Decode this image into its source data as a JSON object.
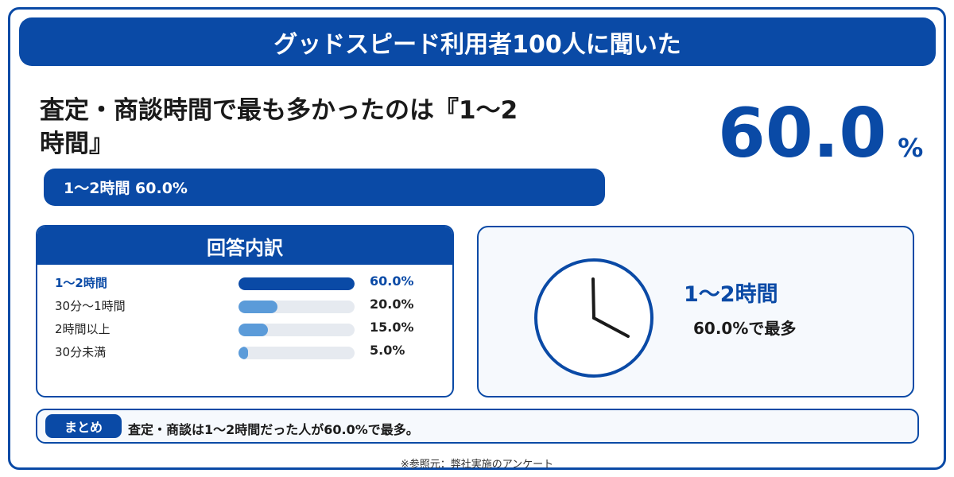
{
  "header": {
    "title": "グッドスピード利用者100人に聞いた"
  },
  "headline": {
    "line1": "査定・商談時間で最も多かったのは『1〜2",
    "line2": "時間』"
  },
  "highlight": {
    "value": "60.0",
    "unit": "%"
  },
  "summary_bar": {
    "text": "1〜2時間 60.0%"
  },
  "breakdown": {
    "title": "回答内訳"
  },
  "clock_card": {
    "label": "1〜2時間",
    "sub": "60.0%で最多"
  },
  "matome": {
    "tag": "まとめ",
    "text": "査定・商談は1〜2時間だった人が60.0%で最多。"
  },
  "source": "※参照元：弊社実施のアンケート",
  "colors": {
    "primary": "#0a4aa6",
    "secondary": "#5b9bd9",
    "track": "#e6eaf0"
  },
  "chart_data": {
    "type": "bar",
    "orientation": "horizontal",
    "categories": [
      "1〜2時間",
      "30分〜1時間",
      "2時間以上",
      "30分未満"
    ],
    "values": [
      60.0,
      20.0,
      15.0,
      5.0
    ],
    "value_labels": [
      "60.0%",
      "20.0%",
      "15.0%",
      "5.0%"
    ],
    "unit": "%",
    "xlim": [
      0,
      60
    ],
    "highlight_index": 0
  }
}
